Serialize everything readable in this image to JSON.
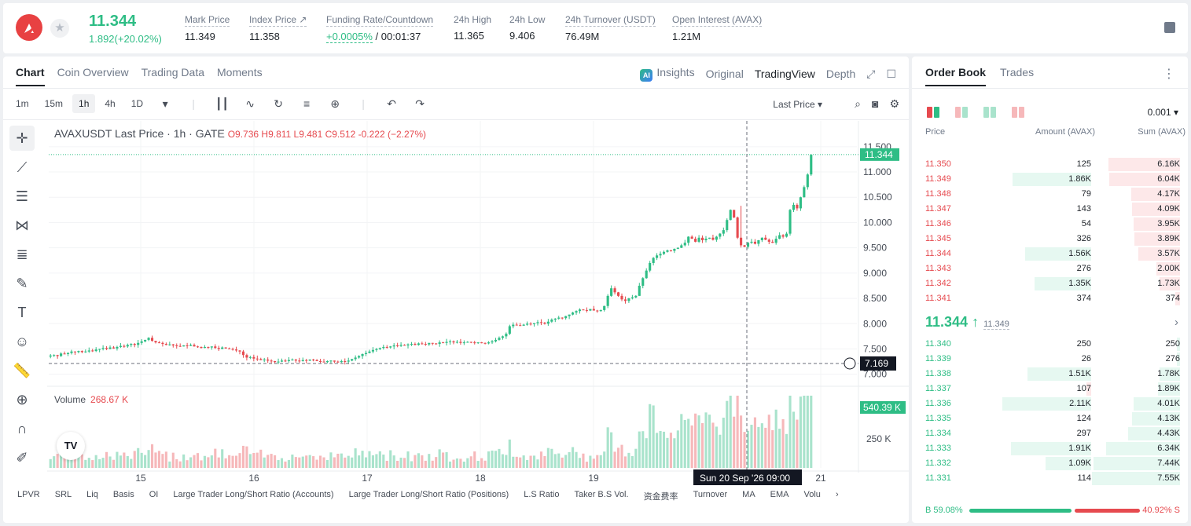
{
  "header": {
    "last_price": "11.344",
    "change": "1.892(+20.02%)",
    "stats": [
      {
        "label": "Mark Price",
        "value": "11.349"
      },
      {
        "label": "Index Price ↗",
        "value": "11.358"
      },
      {
        "label": "Funding Rate/Countdown",
        "value_green": "+0.0005%",
        "value": "/ 00:01:37"
      },
      {
        "label": "24h High",
        "value": "11.365"
      },
      {
        "label": "24h Low",
        "value": "9.406"
      },
      {
        "label": "24h Turnover (USDT)",
        "value": "76.49M"
      },
      {
        "label": "Open Interest (AVAX)",
        "value": "1.21M"
      }
    ]
  },
  "chart_tabs": [
    "Chart",
    "Coin Overview",
    "Trading Data",
    "Moments"
  ],
  "view_tabs": {
    "insights": "Insights",
    "original": "Original",
    "tradingview": "TradingView",
    "depth": "Depth"
  },
  "timeframes": [
    "1m",
    "15m",
    "1h",
    "4h",
    "1D"
  ],
  "last_price_select": "Last Price",
  "legend": {
    "symbol": "AVAXUSDT Last Price · 1h · GATE",
    "ohlc": "O9.736  H9.811  L9.481  C9.512  -0.222 (−2.27%)"
  },
  "volume_legend": {
    "label": "Volume",
    "value": "268.67 K"
  },
  "indicators": [
    "LPVR",
    "SRL",
    "Liq",
    "Basis",
    "OI",
    "Large Trader Long/Short Ratio (Accounts)",
    "Large Trader Long/Short Ratio (Positions)",
    "L.S Ratio",
    "Taker B.S Vol.",
    "资金费率",
    "Turnover",
    "MA",
    "EMA",
    "Volu"
  ],
  "tv_logo": "TV",
  "colors": {
    "up": "#2ebd85",
    "down": "#e64a4f"
  },
  "chart_data": {
    "type": "candlestick",
    "y_axis_ticks": [
      "11.500",
      "11.000",
      "10.500",
      "10.000",
      "9.500",
      "9.000",
      "8.500",
      "8.000",
      "7.500",
      "7.000"
    ],
    "x_axis_ticks": [
      "15",
      "16",
      "17",
      "18",
      "19",
      "21"
    ],
    "volume_ticks": [
      "250 K"
    ],
    "last_price_label": "11.344",
    "crosshair_price_label": "7.169",
    "volume_label": "540.39 K",
    "crosshair_time_label": "Sun 20 Sep '26   09:00",
    "y_range": [
      6.98,
      11.73
    ],
    "closes": [
      7.37,
      7.38,
      7.36,
      7.41,
      7.4,
      7.42,
      7.45,
      7.44,
      7.46,
      7.44,
      7.45,
      7.47,
      7.46,
      7.49,
      7.5,
      7.52,
      7.5,
      7.53,
      7.51,
      7.54,
      7.56,
      7.55,
      7.58,
      7.6,
      7.58,
      7.62,
      7.65,
      7.68,
      7.72,
      7.66,
      7.63,
      7.62,
      7.6,
      7.58,
      7.59,
      7.57,
      7.56,
      7.55,
      7.57,
      7.56,
      7.58,
      7.55,
      7.54,
      7.52,
      7.54,
      7.53,
      7.55,
      7.52,
      7.5,
      7.53,
      7.51,
      7.5,
      7.49,
      7.47,
      7.45,
      7.38,
      7.33,
      7.34,
      7.31,
      7.3,
      7.28,
      7.29,
      7.27,
      7.26,
      7.24,
      7.25,
      7.27,
      7.26,
      7.28,
      7.29,
      7.27,
      7.26,
      7.28,
      7.27,
      7.29,
      7.28,
      7.26,
      7.25,
      7.24,
      7.26,
      7.27,
      7.25,
      7.24,
      7.26,
      7.25,
      7.27,
      7.3,
      7.33,
      7.36,
      7.4,
      7.42,
      7.45,
      7.48,
      7.5,
      7.52,
      7.54,
      7.53,
      7.55,
      7.57,
      7.56,
      7.58,
      7.57,
      7.59,
      7.6,
      7.58,
      7.61,
      7.6,
      7.59,
      7.62,
      7.61,
      7.6,
      7.63,
      7.62,
      7.64,
      7.65,
      7.63,
      7.64,
      7.62,
      7.63,
      7.64,
      7.63,
      7.62,
      7.63,
      7.62,
      7.61,
      7.63,
      7.65,
      7.68,
      7.72,
      7.75,
      7.8,
      7.95,
      7.98,
      7.97,
      7.96,
      7.98,
      8.0,
      7.99,
      8.01,
      8.03,
      8.02,
      8.0,
      8.04,
      8.08,
      8.1,
      8.12,
      8.11,
      8.15,
      8.18,
      8.22,
      8.25,
      8.28,
      8.27,
      8.26,
      8.29,
      8.26,
      8.25,
      8.27,
      8.35,
      8.55,
      8.7,
      8.62,
      8.55,
      8.48,
      8.45,
      8.5,
      8.52,
      8.55,
      8.75,
      8.9,
      9.05,
      9.2,
      9.3,
      9.35,
      9.38,
      9.42,
      9.45,
      9.44,
      9.48,
      9.5,
      9.55,
      9.6,
      9.72,
      9.68,
      9.62,
      9.7,
      9.65,
      9.68,
      9.7,
      9.66,
      9.72,
      9.78,
      9.85,
      10.05,
      10.25,
      10.1,
      9.7,
      9.55,
      9.52,
      9.6,
      9.62,
      9.58,
      9.65,
      9.7,
      9.66,
      9.62,
      9.6,
      9.68,
      9.75,
      9.72,
      9.78,
      10.25,
      10.35,
      10.28,
      10.5,
      10.7,
      10.95,
      11.34
    ]
  },
  "orderbook": {
    "tabs": [
      "Order Book",
      "Trades"
    ],
    "precision": "0.001",
    "headers": {
      "price": "Price",
      "amount": "Amount (AVAX)",
      "sum": "Sum (AVAX)"
    },
    "asks": [
      {
        "price": "11.350",
        "amount": "125",
        "sum": "6.16K"
      },
      {
        "price": "11.349",
        "amount": "1.86K",
        "sum": "6.04K"
      },
      {
        "price": "11.348",
        "amount": "79",
        "sum": "4.17K"
      },
      {
        "price": "11.347",
        "amount": "143",
        "sum": "4.09K"
      },
      {
        "price": "11.346",
        "amount": "54",
        "sum": "3.95K"
      },
      {
        "price": "11.345",
        "amount": "326",
        "sum": "3.89K"
      },
      {
        "price": "11.344",
        "amount": "1.56K",
        "sum": "3.57K"
      },
      {
        "price": "11.343",
        "amount": "276",
        "sum": "2.00K"
      },
      {
        "price": "11.342",
        "amount": "1.35K",
        "sum": "1.73K"
      },
      {
        "price": "11.341",
        "amount": "374",
        "sum": "374"
      }
    ],
    "mid_price": "11.344 ↑",
    "mark_price": "11.349",
    "bids": [
      {
        "price": "11.340",
        "amount": "250",
        "sum": "250"
      },
      {
        "price": "11.339",
        "amount": "26",
        "sum": "276"
      },
      {
        "price": "11.338",
        "amount": "1.51K",
        "sum": "1.78K"
      },
      {
        "price": "11.337",
        "amount": "107",
        "sum": "1.89K"
      },
      {
        "price": "11.336",
        "amount": "2.11K",
        "sum": "4.01K"
      },
      {
        "price": "11.335",
        "amount": "124",
        "sum": "4.13K"
      },
      {
        "price": "11.334",
        "amount": "297",
        "sum": "4.43K"
      },
      {
        "price": "11.333",
        "amount": "1.91K",
        "sum": "6.34K"
      },
      {
        "price": "11.332",
        "amount": "1.09K",
        "sum": "7.44K"
      },
      {
        "price": "11.331",
        "amount": "114",
        "sum": "7.55K"
      }
    ],
    "buy_ratio": "B 59.08%",
    "sell_ratio": "40.92% S"
  }
}
